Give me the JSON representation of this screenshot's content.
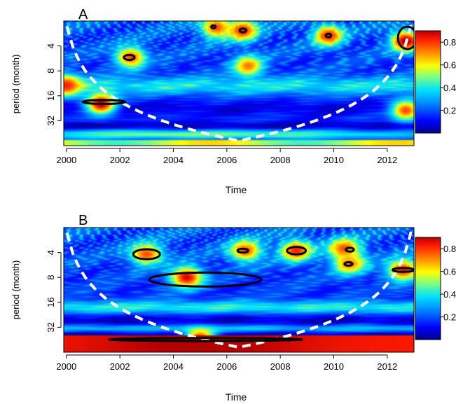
{
  "chart_data": [
    {
      "type": "heatmap",
      "panel_label": "A",
      "xlabel": "Time",
      "ylabel": "period (month)",
      "x_ticks": [
        2000,
        2002,
        2004,
        2006,
        2008,
        2010,
        2012
      ],
      "y_ticks": [
        4,
        8,
        16,
        32
      ],
      "xlim": [
        1999.9,
        2013.0
      ],
      "period_range": [
        2,
        64
      ],
      "colorbar": {
        "ticks": [
          0.2,
          0.4,
          0.6,
          0.8
        ],
        "range": [
          0.0,
          0.9
        ]
      },
      "hotspots": [
        {
          "t": 2000.0,
          "p": 12,
          "v": 0.85
        },
        {
          "t": 2001.3,
          "p": 20,
          "v": 0.95
        },
        {
          "t": 2002.4,
          "p": 5.5,
          "v": 0.8
        },
        {
          "t": 2005.6,
          "p": 2.4,
          "v": 0.8
        },
        {
          "t": 2006.6,
          "p": 2.6,
          "v": 0.85
        },
        {
          "t": 2006.8,
          "p": 7.0,
          "v": 0.75
        },
        {
          "t": 2009.8,
          "p": 3.0,
          "v": 0.85
        },
        {
          "t": 2012.7,
          "p": 3.5,
          "v": 0.95
        },
        {
          "t": 2012.7,
          "p": 24,
          "v": 0.8
        }
      ],
      "significance_contours": [
        {
          "t": 2001.4,
          "p": 19,
          "w": 0.8,
          "h": 0.08
        },
        {
          "t": 2002.35,
          "p": 5.5,
          "w": 0.2,
          "h": 0.1
        },
        {
          "t": 2005.5,
          "p": 2.35,
          "w": 0.08,
          "h": 0.06
        },
        {
          "t": 2006.6,
          "p": 2.6,
          "w": 0.12,
          "h": 0.08
        },
        {
          "t": 2009.8,
          "p": 3.0,
          "w": 0.1,
          "h": 0.07
        },
        {
          "t": 2012.75,
          "p": 3.2,
          "w": 0.35,
          "h": 0.45
        }
      ]
    },
    {
      "type": "heatmap",
      "panel_label": "B",
      "xlabel": "Time",
      "ylabel": "period (month)",
      "x_ticks": [
        2000,
        2002,
        2004,
        2006,
        2008,
        2010,
        2012
      ],
      "y_ticks": [
        4,
        8,
        16,
        32
      ],
      "xlim": [
        1999.9,
        2013.0
      ],
      "period_range": [
        2,
        64
      ],
      "colorbar": {
        "ticks": [
          0.2,
          0.4,
          0.6,
          0.8
        ],
        "range": [
          0.0,
          0.9
        ]
      },
      "hotspots": [
        {
          "t": 2003.0,
          "p": 4.2,
          "v": 0.8
        },
        {
          "t": 2004.5,
          "p": 8.0,
          "v": 0.9
        },
        {
          "t": 2006.7,
          "p": 3.8,
          "v": 0.8
        },
        {
          "t": 2008.6,
          "p": 3.8,
          "v": 0.85
        },
        {
          "t": 2010.4,
          "p": 3.6,
          "v": 0.8
        },
        {
          "t": 2010.6,
          "p": 5.5,
          "v": 0.75
        },
        {
          "t": 2012.6,
          "p": 6.5,
          "v": 0.85
        },
        {
          "t": 2005.0,
          "p": 45,
          "v": 0.95
        }
      ],
      "significance_contours": [
        {
          "t": 2003.0,
          "p": 4.2,
          "w": 0.5,
          "h": 0.2
        },
        {
          "t": 2005.2,
          "p": 8.5,
          "w": 2.1,
          "h": 0.28
        },
        {
          "t": 2006.6,
          "p": 3.8,
          "w": 0.2,
          "h": 0.08
        },
        {
          "t": 2008.6,
          "p": 3.8,
          "w": 0.35,
          "h": 0.15
        },
        {
          "t": 2010.6,
          "p": 3.7,
          "w": 0.15,
          "h": 0.08
        },
        {
          "t": 2010.55,
          "p": 5.5,
          "w": 0.15,
          "h": 0.07
        },
        {
          "t": 2012.6,
          "p": 6.5,
          "w": 0.4,
          "h": 0.08
        },
        {
          "t": 2005.2,
          "p": 45,
          "w": 3.6,
          "h": 0.06
        }
      ]
    }
  ]
}
